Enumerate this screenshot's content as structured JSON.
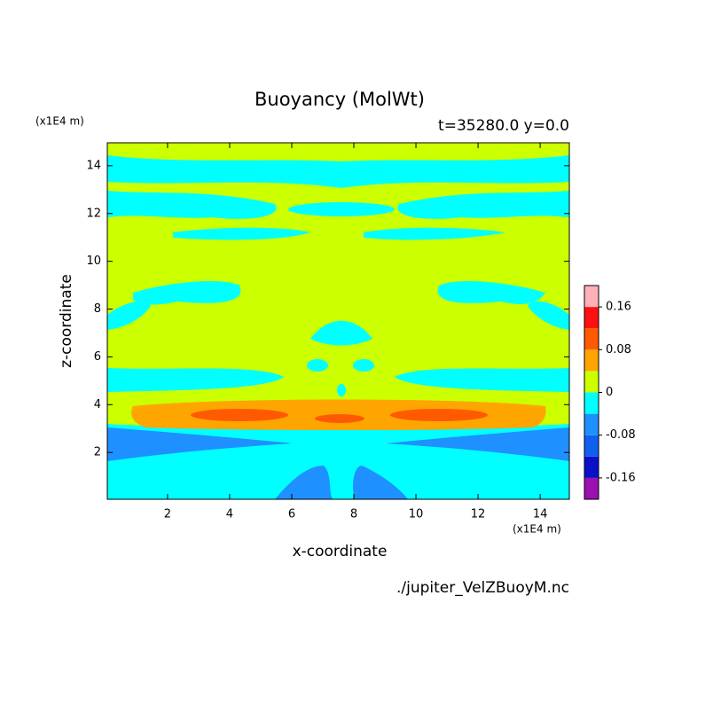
{
  "chart_data": {
    "type": "contour",
    "title": "Buoyancy (MolWt)",
    "subtitle": "t=35280.0 y=0.0",
    "x_label": "x-coordinate",
    "y_label": "z-coordinate",
    "x_unit": "(x1E4 m)",
    "y_unit": "(x1E4 m)",
    "source": "./jupiter_VelZBuoyM.nc",
    "xlim": [
      0.06,
      14.94
    ],
    "ylim": [
      0.04,
      14.96
    ],
    "xticks": [
      2,
      4,
      6,
      8,
      10,
      12,
      14
    ],
    "yticks": [
      2,
      4,
      6,
      8,
      10,
      12,
      14
    ],
    "colorbar": {
      "levels": [
        -0.2,
        -0.16,
        -0.12,
        -0.08,
        -0.04,
        0,
        0.04,
        0.08,
        0.12,
        0.16,
        0.2
      ],
      "colors": [
        "#9a10b0",
        "#0a10c8",
        "#1060f0",
        "#1e90ff",
        "#00ffff",
        "#ccff00",
        "#ffa500",
        "#ff5a00",
        "#ff1010",
        "#ffb0b8"
      ],
      "ticks": [
        -0.16,
        -0.08,
        0,
        0.08,
        0.16
      ]
    }
  }
}
